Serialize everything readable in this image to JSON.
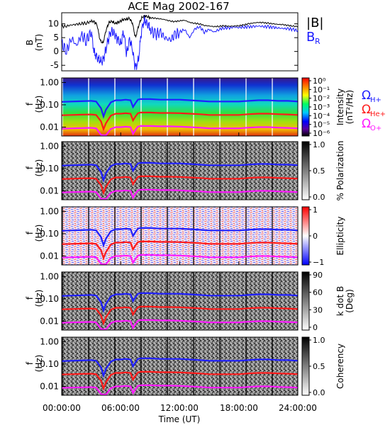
{
  "title": "ACE Mag 2002-167",
  "colors": {
    "b_total": "#000000",
    "b_r": "#1a1aff",
    "omega_h": "#1f1fff",
    "omega_he": "#ff1a1a",
    "omega_o": "#ff19ff"
  },
  "legend_top": {
    "b_total": "|B|",
    "b_r": "B",
    "b_r_sub": "R"
  },
  "legend_gyro": {
    "h": "Ω",
    "h_sub": "H+",
    "he": "Ω",
    "he_sub": "He+",
    "o": "Ω",
    "o_sub": "O+"
  },
  "chart_data": [
    {
      "type": "line",
      "panel": "magnetic-field",
      "ylabel": "B",
      "ylabel_unit": "(nT)",
      "xlim": [
        0,
        24
      ],
      "ylim": [
        -7,
        14
      ],
      "yticks": [
        -5,
        0,
        5,
        10
      ],
      "series": [
        {
          "name": "|B|",
          "x": [
            0,
            0.5,
            1,
            1.5,
            2,
            2.5,
            3,
            3.3,
            3.6,
            3.9,
            4.2,
            4.5,
            4.8,
            5.1,
            5.4,
            5.7,
            6,
            6.3,
            6.6,
            6.9,
            7.2,
            7.5,
            7.8,
            8.1,
            8.4,
            8.7,
            9,
            9.5,
            10,
            10.5,
            11,
            11.5,
            12,
            12.5,
            13,
            13.5,
            14,
            14.5,
            15,
            15.5,
            16,
            16.5,
            17,
            17.5,
            18,
            18.5,
            19,
            19.5,
            20,
            20.5,
            21,
            21.5,
            22,
            22.5,
            23,
            23.5,
            24
          ],
          "values": [
            9,
            9.2,
            9.6,
            9.8,
            10.1,
            10.3,
            10.8,
            11,
            9.5,
            4,
            3,
            7.5,
            10.5,
            11,
            10,
            10.5,
            11,
            11.5,
            11.8,
            12,
            10,
            5,
            9,
            12,
            13,
            12.5,
            12.2,
            12,
            11.8,
            11.5,
            11,
            10.8,
            11.1,
            11.3,
            10.5,
            10.2,
            10,
            9.4,
            9.2,
            9,
            9.1,
            9.3,
            9.1,
            9.2,
            9.3,
            9.6,
            10,
            10.3,
            10.5,
            10.4,
            10.2,
            10,
            9.8,
            9.7,
            9.4,
            9.2,
            9
          ]
        },
        {
          "name": "B",
          "x": [
            0,
            0.5,
            1,
            1.5,
            2,
            2.5,
            3,
            3.3,
            3.6,
            3.9,
            4.2,
            4.5,
            4.8,
            5.1,
            5.4,
            5.7,
            6,
            6.3,
            6.6,
            6.9,
            7.2,
            7.5,
            7.8,
            8.1,
            8.4,
            8.7,
            9,
            9.5,
            10,
            10.5,
            11,
            11.5,
            12,
            12.5,
            13,
            13.5,
            14,
            14.5,
            15,
            15.5,
            16,
            16.5,
            17,
            17.5,
            18,
            18.5,
            19,
            19.5,
            20,
            20.5,
            21,
            21.5,
            22,
            22.5,
            23,
            23.5,
            24
          ],
          "values": [
            3,
            0,
            5,
            2,
            6,
            4,
            7,
            0,
            -2,
            -4,
            -3,
            1,
            5,
            8,
            6,
            4,
            3,
            7,
            -1,
            5,
            0,
            -6,
            -3,
            7,
            12,
            10,
            8,
            6,
            7,
            5,
            4,
            6,
            7,
            8,
            5,
            8,
            9,
            7,
            8,
            7,
            8,
            8.5,
            8.5,
            8.8,
            8.7,
            8.8,
            8.9,
            9,
            9.2,
            9,
            8.9,
            8.7,
            8.5,
            8.3,
            8.2,
            8,
            7.5
          ]
        }
      ]
    },
    {
      "type": "heatmap",
      "panel": "intensity",
      "ylabel": "f",
      "ylabel_unit": "(Hz)",
      "yticks": [
        "1.00",
        "0.10",
        "0.01"
      ],
      "colorbar_label": "Intensity",
      "colorbar_unit": "(nT²/Hz)",
      "colorbar_ticks": [
        "10⁰",
        "10⁻¹",
        "10⁻²",
        "10⁻³",
        "10⁻⁴",
        "10⁻⁵",
        "10⁻⁶"
      ]
    },
    {
      "type": "heatmap",
      "panel": "polarization",
      "ylabel": "f",
      "ylabel_unit": "(Hz)",
      "yticks": [
        "1.00",
        "0.10",
        "0.01"
      ],
      "colorbar_label": "% Polarization",
      "colorbar_ticks": [
        "1.0",
        "0.5",
        "0.0"
      ]
    },
    {
      "type": "heatmap",
      "panel": "ellipticity",
      "ylabel": "f",
      "ylabel_unit": "(Hz)",
      "yticks": [
        "1.00",
        "0.10",
        "0.01"
      ],
      "colorbar_label": "Ellipticity",
      "colorbar_ticks": [
        "1",
        "0",
        "−1"
      ]
    },
    {
      "type": "heatmap",
      "panel": "k-dot-b",
      "ylabel": "f",
      "ylabel_unit": "(Hz)",
      "yticks": [
        "1.00",
        "0.10",
        "0.01"
      ],
      "colorbar_label": "k dot B",
      "colorbar_unit": "(Deg)",
      "colorbar_ticks": [
        "90",
        "60",
        "30",
        "0"
      ]
    },
    {
      "type": "heatmap",
      "panel": "coherency",
      "ylabel": "f",
      "ylabel_unit": "(Hz)",
      "yticks": [
        "1.00",
        "0.10",
        "0.01"
      ],
      "colorbar_label": "Coherency",
      "colorbar_ticks": [
        "1.0",
        "0.5",
        "0.0"
      ]
    },
    {
      "type": "line",
      "panel": "gyrofrequencies",
      "x": [
        0,
        1,
        2,
        3,
        3.5,
        4,
        4.25,
        4.5,
        5,
        5.5,
        6,
        6.5,
        7,
        7.25,
        7.5,
        7.75,
        8,
        9,
        10,
        11,
        12,
        13,
        14,
        15,
        16,
        17,
        18,
        19,
        20,
        21,
        22,
        23,
        24
      ],
      "series": [
        {
          "name": "ΩH+",
          "values_hz": [
            0.135,
            0.14,
            0.145,
            0.15,
            0.14,
            0.07,
            0.03,
            0.06,
            0.13,
            0.16,
            0.16,
            0.17,
            0.16,
            0.08,
            0.12,
            0.17,
            0.18,
            0.18,
            0.17,
            0.17,
            0.17,
            0.16,
            0.15,
            0.14,
            0.14,
            0.14,
            0.14,
            0.15,
            0.16,
            0.16,
            0.15,
            0.15,
            0.14
          ]
        },
        {
          "name": "ΩHe+",
          "values_hz": [
            0.034,
            0.035,
            0.036,
            0.037,
            0.035,
            0.018,
            0.008,
            0.015,
            0.033,
            0.04,
            0.04,
            0.042,
            0.04,
            0.02,
            0.03,
            0.042,
            0.045,
            0.045,
            0.043,
            0.043,
            0.042,
            0.04,
            0.038,
            0.035,
            0.035,
            0.035,
            0.035,
            0.038,
            0.04,
            0.04,
            0.038,
            0.037,
            0.035
          ]
        },
        {
          "name": "ΩO+",
          "values_hz": [
            0.0085,
            0.0088,
            0.009,
            0.0093,
            0.0088,
            0.0045,
            0.002,
            0.0038,
            0.0083,
            0.01,
            0.01,
            0.0105,
            0.01,
            0.005,
            0.0075,
            0.0105,
            0.0112,
            0.0112,
            0.0108,
            0.0108,
            0.0105,
            0.01,
            0.0095,
            0.0088,
            0.0088,
            0.0088,
            0.0088,
            0.0095,
            0.01,
            0.01,
            0.0095,
            0.0092,
            0.0088
          ]
        }
      ]
    }
  ],
  "x_axis": {
    "ticks": [
      "00:00:00",
      "06:00:00",
      "12:00:00",
      "18:00:00",
      "24:00:00"
    ],
    "label": "Time (UT)"
  }
}
